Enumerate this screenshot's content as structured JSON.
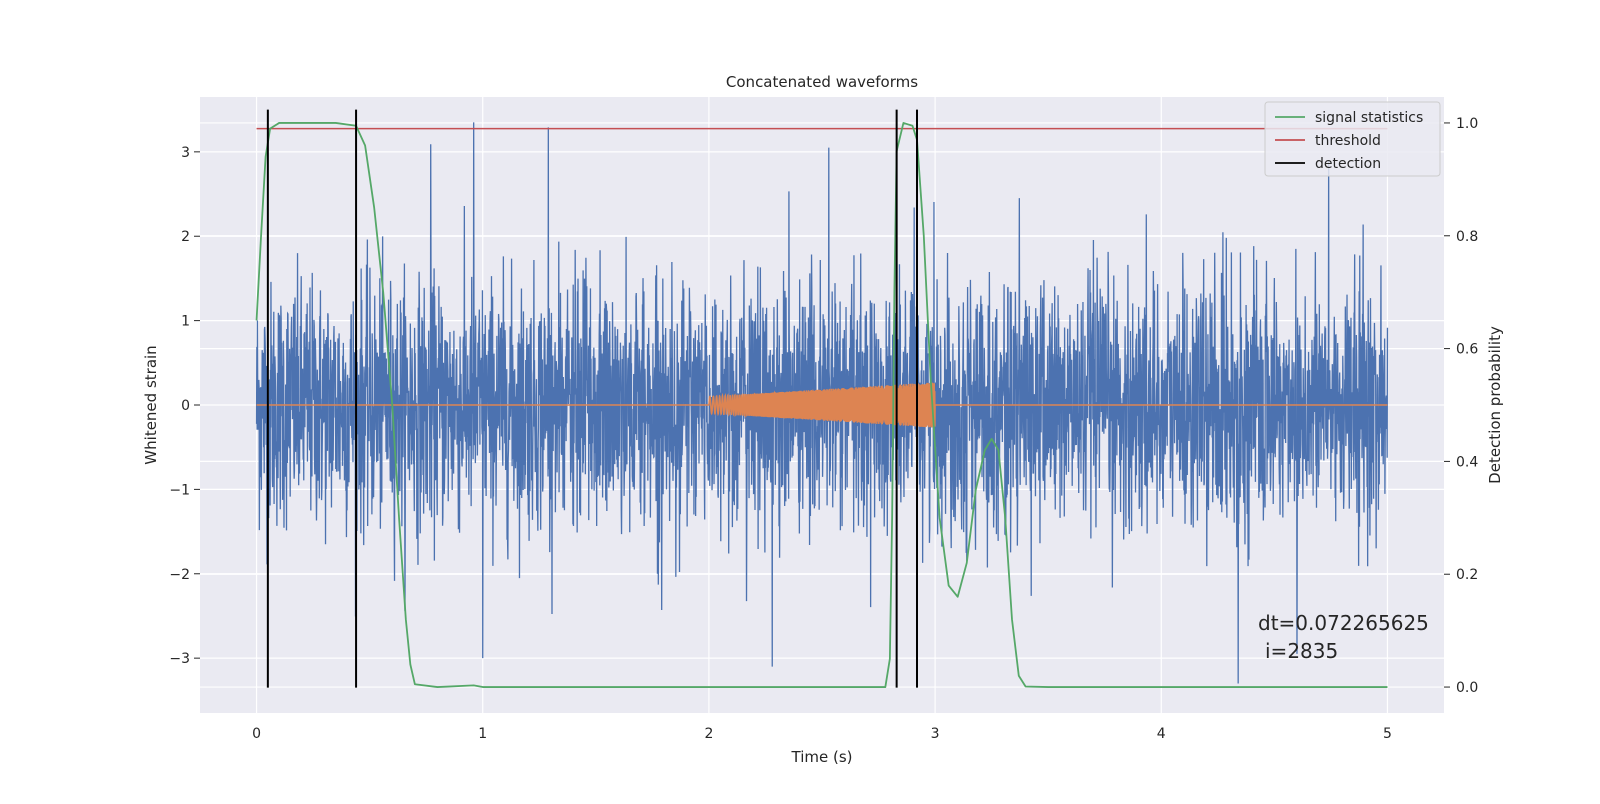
{
  "chart_data": {
    "type": "line",
    "title": "Concatenated waveforms",
    "xlabel": "Time (s)",
    "ylabel_left": "Whitened strain",
    "ylabel_right": "Detection probability",
    "xlim": [
      -0.25,
      5.25
    ],
    "ylim_left": [
      -3.65,
      3.65
    ],
    "ylim_right": [
      -0.046,
      1.046
    ],
    "x_ticks": [
      0,
      1,
      2,
      3,
      4,
      5
    ],
    "x_tick_labels": [
      "0",
      "1",
      "2",
      "3",
      "4",
      "5"
    ],
    "y_left_ticks": [
      -3,
      -2,
      -1,
      0,
      1,
      2,
      3
    ],
    "y_left_tick_labels": [
      "−3",
      "−2",
      "−1",
      "0",
      "1",
      "2",
      "3"
    ],
    "y_right_ticks": [
      0.0,
      0.2,
      0.4,
      0.6,
      0.8,
      1.0
    ],
    "y_right_tick_labels": [
      "0.0",
      "0.2",
      "0.4",
      "0.6",
      "0.8",
      "1.0"
    ],
    "grid": true,
    "legend_position": "top-right",
    "legend": [
      {
        "label": "signal statistics",
        "color": "#55a868"
      },
      {
        "label": "threshold",
        "color": "#c44e52"
      },
      {
        "label": "detection",
        "color": "#000000"
      }
    ],
    "series": [
      {
        "name": "",
        "axis": "left",
        "color": "#4c72b0",
        "description": "whitened strain noise, x 0..5 s",
        "envelope_typical": 1.9,
        "extreme_peaks": [
          [
            0.96,
            3.35
          ],
          [
            1.29,
            3.29
          ],
          [
            0.77,
            3.09
          ],
          [
            1.0,
            -3.0
          ],
          [
            2.28,
            -3.1
          ],
          [
            4.34,
            -3.3
          ],
          [
            4.6,
            -2.95
          ],
          [
            4.74,
            2.9
          ],
          [
            2.53,
            3.05
          ]
        ]
      },
      {
        "name": "",
        "axis": "left",
        "color": "#dd8452",
        "description": "injected chirp waveform, zero outside 2.0..3.0 s",
        "x_start": 2.0,
        "x_end": 3.0,
        "amp_start": 0.1,
        "amp_end": 0.27
      },
      {
        "name": "signal statistics",
        "axis": "right",
        "color": "#55a868",
        "points": [
          [
            0.0,
            0.65
          ],
          [
            0.02,
            0.8
          ],
          [
            0.04,
            0.94
          ],
          [
            0.06,
            0.99
          ],
          [
            0.1,
            1.0
          ],
          [
            0.2,
            1.0
          ],
          [
            0.35,
            1.0
          ],
          [
            0.44,
            0.995
          ],
          [
            0.48,
            0.96
          ],
          [
            0.52,
            0.85
          ],
          [
            0.56,
            0.7
          ],
          [
            0.6,
            0.5
          ],
          [
            0.63,
            0.3
          ],
          [
            0.66,
            0.12
          ],
          [
            0.68,
            0.04
          ],
          [
            0.7,
            0.005
          ],
          [
            0.8,
            0.0
          ],
          [
            0.96,
            0.003
          ],
          [
            1.0,
            0.0
          ],
          [
            2.0,
            0.0
          ],
          [
            2.78,
            0.0
          ],
          [
            2.8,
            0.05
          ],
          [
            2.81,
            0.3
          ],
          [
            2.82,
            0.7
          ],
          [
            2.83,
            0.95
          ],
          [
            2.86,
            1.0
          ],
          [
            2.9,
            0.995
          ],
          [
            2.92,
            0.97
          ],
          [
            2.95,
            0.8
          ],
          [
            2.98,
            0.55
          ],
          [
            3.02,
            0.3
          ],
          [
            3.06,
            0.18
          ],
          [
            3.1,
            0.16
          ],
          [
            3.14,
            0.22
          ],
          [
            3.18,
            0.35
          ],
          [
            3.22,
            0.42
          ],
          [
            3.25,
            0.44
          ],
          [
            3.28,
            0.42
          ],
          [
            3.31,
            0.3
          ],
          [
            3.34,
            0.12
          ],
          [
            3.37,
            0.02
          ],
          [
            3.4,
            0.001
          ],
          [
            3.5,
            0.0
          ],
          [
            4.0,
            0.0
          ],
          [
            5.0,
            0.0
          ]
        ]
      },
      {
        "name": "threshold",
        "axis": "right",
        "color": "#c44e52",
        "value": 0.99,
        "x_range": [
          0,
          5
        ]
      },
      {
        "name": "detection",
        "axis": "left",
        "color": "#000000",
        "x_positions": [
          0.05,
          0.44,
          2.83,
          2.92
        ],
        "y_range": [
          -3.35,
          3.5
        ]
      }
    ],
    "annotation": {
      "line1": "dt=0.072265625",
      "line2": "i=2835"
    }
  }
}
